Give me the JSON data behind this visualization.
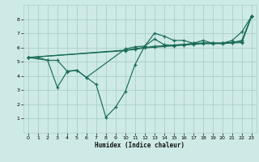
{
  "xlabel": "Humidex (Indice chaleur)",
  "bg_color": "#ceeae6",
  "grid_color": "#aacfcb",
  "line_color": "#1a6b5a",
  "xlim": [
    -0.5,
    23.5
  ],
  "ylim": [
    0,
    9
  ],
  "xticks": [
    0,
    1,
    2,
    3,
    4,
    5,
    6,
    7,
    8,
    9,
    10,
    11,
    12,
    13,
    14,
    15,
    16,
    17,
    18,
    19,
    20,
    21,
    22,
    23
  ],
  "yticks": [
    1,
    2,
    3,
    4,
    5,
    6,
    7,
    8
  ],
  "series1": [
    [
      0,
      5.3
    ],
    [
      1,
      5.3
    ],
    [
      2,
      5.1
    ],
    [
      3,
      3.2
    ],
    [
      4,
      4.3
    ],
    [
      5,
      4.4
    ],
    [
      6,
      3.9
    ],
    [
      7,
      3.4
    ],
    [
      8,
      1.1
    ],
    [
      9,
      1.8
    ],
    [
      10,
      2.9
    ],
    [
      11,
      4.8
    ],
    [
      12,
      6.1
    ],
    [
      13,
      7.0
    ],
    [
      14,
      6.8
    ],
    [
      15,
      6.5
    ],
    [
      16,
      6.5
    ],
    [
      17,
      6.3
    ],
    [
      18,
      6.5
    ],
    [
      19,
      6.3
    ],
    [
      20,
      6.3
    ],
    [
      21,
      6.5
    ],
    [
      22,
      7.1
    ],
    [
      23,
      8.2
    ]
  ],
  "series2": [
    [
      0,
      5.3
    ],
    [
      2,
      5.1
    ],
    [
      3,
      5.1
    ],
    [
      4,
      4.35
    ],
    [
      5,
      4.4
    ],
    [
      6,
      3.9
    ],
    [
      10,
      5.9
    ],
    [
      11,
      6.05
    ],
    [
      12,
      6.1
    ],
    [
      13,
      6.6
    ],
    [
      14,
      6.2
    ],
    [
      15,
      6.15
    ],
    [
      16,
      6.2
    ],
    [
      17,
      6.3
    ],
    [
      18,
      6.3
    ],
    [
      19,
      6.3
    ],
    [
      20,
      6.3
    ],
    [
      21,
      6.35
    ],
    [
      22,
      6.5
    ],
    [
      23,
      8.2
    ]
  ],
  "series3": [
    [
      0,
      5.3
    ],
    [
      10,
      5.82
    ],
    [
      11,
      5.92
    ],
    [
      12,
      6.02
    ],
    [
      13,
      6.08
    ],
    [
      14,
      6.13
    ],
    [
      15,
      6.18
    ],
    [
      16,
      6.22
    ],
    [
      17,
      6.27
    ],
    [
      18,
      6.32
    ],
    [
      19,
      6.32
    ],
    [
      20,
      6.32
    ],
    [
      21,
      6.37
    ],
    [
      22,
      6.4
    ],
    [
      23,
      8.2
    ]
  ],
  "series4": [
    [
      0,
      5.3
    ],
    [
      10,
      5.78
    ],
    [
      11,
      5.87
    ],
    [
      12,
      5.97
    ],
    [
      13,
      6.02
    ],
    [
      14,
      6.07
    ],
    [
      15,
      6.12
    ],
    [
      16,
      6.17
    ],
    [
      17,
      6.22
    ],
    [
      18,
      6.27
    ],
    [
      19,
      6.27
    ],
    [
      20,
      6.27
    ],
    [
      21,
      6.32
    ],
    [
      22,
      6.35
    ],
    [
      23,
      8.2
    ]
  ]
}
